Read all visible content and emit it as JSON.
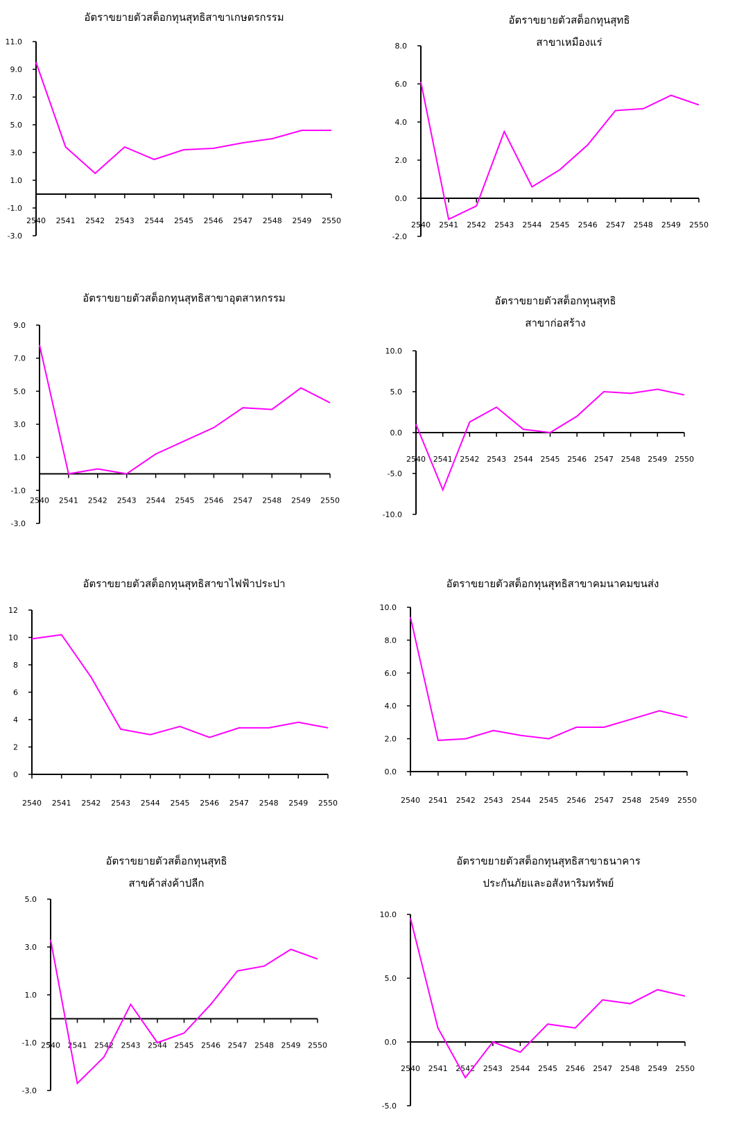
{
  "colors": {
    "line": "#ff00ff",
    "axis": "#000000"
  },
  "chart_data": [
    {
      "type": "line",
      "title_lines": [
        "อัตราขยายตัวสต็อกทุนสุทธิสาขาเกษตรกรรม"
      ],
      "categories": [
        "2540",
        "2541",
        "2542",
        "2543",
        "2544",
        "2545",
        "2546",
        "2547",
        "2548",
        "2549",
        "2550"
      ],
      "values": [
        9.5,
        3.4,
        1.5,
        3.4,
        2.5,
        3.2,
        3.3,
        3.7,
        4.0,
        4.6,
        4.6
      ],
      "ylim": [
        -3.0,
        11.0
      ],
      "yticks": [
        "11.0",
        "9.0",
        "7.0",
        "5.0",
        "3.0",
        "1.0",
        "-1.0",
        "-3.0"
      ],
      "x_axis_at": 0
    },
    {
      "type": "line",
      "title_lines": [
        "อัตราขยายตัวสต็อกทุนสุทธิ",
        "สาขาเหมืองแร่"
      ],
      "categories": [
        "2540",
        "2541",
        "2542",
        "2543",
        "2544",
        "2545",
        "2546",
        "2547",
        "2548",
        "2549",
        "2550"
      ],
      "values": [
        6.1,
        -1.1,
        -0.4,
        3.5,
        0.6,
        1.5,
        2.8,
        4.6,
        4.7,
        5.4,
        4.9
      ],
      "ylim": [
        -2.0,
        8.0
      ],
      "yticks": [
        "8.0",
        "6.0",
        "4.0",
        "2.0",
        "0.0",
        "-2.0"
      ],
      "x_axis_at": 0
    },
    {
      "type": "line",
      "title_lines": [
        "อัตราขยายตัวสต็อกทุนสุทธิสาขาอุตสาหกรรม"
      ],
      "categories": [
        "2540",
        "2541",
        "2542",
        "2543",
        "2544",
        "2545",
        "2546",
        "2547",
        "2548",
        "2549",
        "2550"
      ],
      "values": [
        7.8,
        0.0,
        0.3,
        0.0,
        1.2,
        2.0,
        2.8,
        4.0,
        3.9,
        5.2,
        4.3
      ],
      "ylim": [
        -3.0,
        9.0
      ],
      "yticks": [
        "9.0",
        "7.0",
        "5.0",
        "3.0",
        "1.0",
        "-1.0",
        "-3.0"
      ],
      "x_axis_at": 0
    },
    {
      "type": "line",
      "title_lines": [
        "อัตราขยายตัวสต็อกทุนสุทธิ",
        "สาขาก่อสร้าง"
      ],
      "categories": [
        "2540",
        "2541",
        "2542",
        "2543",
        "2544",
        "2545",
        "2546",
        "2547",
        "2548",
        "2549",
        "2550"
      ],
      "values": [
        1.0,
        -7.0,
        1.3,
        3.1,
        0.4,
        0.0,
        2.0,
        5.0,
        4.8,
        5.3,
        4.6
      ],
      "ylim": [
        -10.0,
        10.0
      ],
      "yticks": [
        "10.0",
        "5.0",
        "0.0",
        "-5.0",
        "-10.0"
      ],
      "x_axis_at": 0
    },
    {
      "type": "line",
      "title_lines": [
        "อัตราขยายตัวสต็อกทุนสุทธิสาขาไฟฟ้าประปา"
      ],
      "categories": [
        "2540",
        "2541",
        "2542",
        "2543",
        "2544",
        "2545",
        "2546",
        "2547",
        "2548",
        "2549",
        "2550"
      ],
      "values": [
        9.9,
        10.2,
        7.1,
        3.3,
        2.9,
        3.5,
        2.7,
        3.4,
        3.4,
        3.8,
        3.4
      ],
      "ylim": [
        0,
        12
      ],
      "yticks": [
        "12",
        "10",
        "8",
        "6",
        "4",
        "2",
        "0"
      ],
      "x_axis_at": 0
    },
    {
      "type": "line",
      "title_lines": [
        "อัตราขยายตัวสต็อกทุนสุทธิสาขาคมนาคมขนส่ง"
      ],
      "categories": [
        "2540",
        "2541",
        "2542",
        "2543",
        "2544",
        "2545",
        "2546",
        "2547",
        "2548",
        "2549",
        "2550"
      ],
      "values": [
        9.4,
        1.9,
        2.0,
        2.5,
        2.2,
        2.0,
        2.7,
        2.7,
        3.2,
        3.7,
        3.3
      ],
      "ylim": [
        0.0,
        10.0
      ],
      "yticks": [
        "10.0",
        "8.0",
        "6.0",
        "4.0",
        "2.0",
        "0.0"
      ],
      "x_axis_at": 0
    },
    {
      "type": "line",
      "title_lines": [
        "อัตราขยายตัวสต็อกทุนสุทธิ",
        "สาขค้าส่งค้าปลีก"
      ],
      "categories": [
        "2540",
        "2541",
        "2542",
        "2543",
        "2544",
        "2545",
        "2546",
        "2547",
        "2548",
        "2549",
        "2550"
      ],
      "values": [
        3.3,
        -2.7,
        -1.6,
        0.6,
        -1.0,
        -0.6,
        0.6,
        2.0,
        2.2,
        2.9,
        2.5
      ],
      "ylim": [
        -3.0,
        5.0
      ],
      "yticks": [
        "5.0",
        "3.0",
        "1.0",
        "-1.0",
        "-3.0"
      ],
      "x_axis_at": 0
    },
    {
      "type": "line",
      "title_lines": [
        "อัตราขยายตัวสต็อกทุนสุทธิสาขาธนาคาร",
        "ประกันภัยและอสังหาริมทรัพย์"
      ],
      "categories": [
        "2540",
        "2541",
        "2542",
        "2543",
        "2544",
        "2545",
        "2546",
        "2547",
        "2548",
        "2549",
        "2550"
      ],
      "values": [
        9.7,
        1.1,
        -2.8,
        0.0,
        -0.8,
        1.4,
        1.1,
        3.3,
        3.0,
        4.1,
        3.6
      ],
      "ylim": [
        -5.0,
        10.0
      ],
      "yticks": [
        "10.0",
        "5.0",
        "0.0",
        "-5.0"
      ],
      "x_axis_at": 0
    }
  ]
}
